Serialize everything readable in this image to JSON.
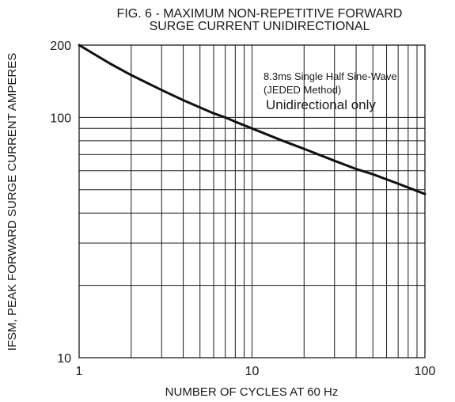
{
  "chart_data": {
    "type": "line",
    "title_lines": [
      "FIG. 6 - MAXIMUM NON-REPETITIVE FORWARD",
      "SURGE CURRENT UNIDIRECTIONAL"
    ],
    "xlabel": "NUMBER OF CYCLES AT 60 Hz",
    "ylabel": "IFSM, PEAK FORWARD SURGE CURRENT AMPERES",
    "x_scale": "log",
    "y_scale": "log",
    "xlim": [
      1,
      100
    ],
    "ylim": [
      10,
      200
    ],
    "x_tick_labels": [
      "1",
      "10",
      "100"
    ],
    "y_tick_labels": [
      "10",
      "100",
      "200"
    ],
    "grid": true,
    "annotations": [
      "8.3ms Single Half Sine-Wave",
      "(JEDED Method)",
      "Unidirectional only"
    ],
    "series": [
      {
        "x": [
          1,
          1.5,
          2,
          3,
          4,
          5,
          6,
          7,
          8,
          10,
          15,
          20,
          30,
          40,
          50,
          70,
          100
        ],
        "y": [
          200,
          168,
          150,
          130,
          118,
          110,
          104,
          100,
          96,
          90,
          80,
          74,
          66,
          61,
          58,
          53,
          48
        ]
      }
    ],
    "colors": {
      "line": "#111111",
      "grid": "#1a1a1a"
    }
  }
}
